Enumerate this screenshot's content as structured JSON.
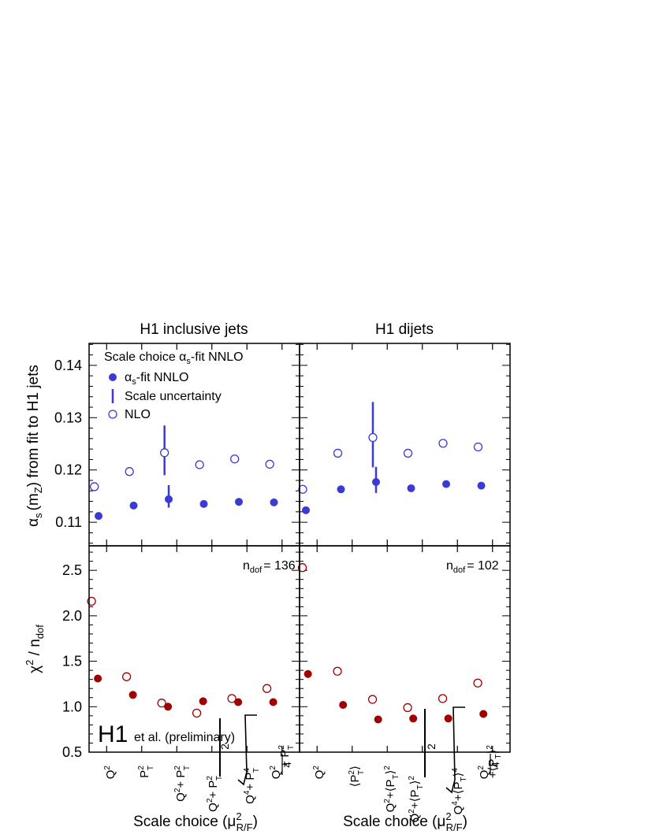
{
  "colors": {
    "blue": "#3a3ad6",
    "red": "#a00000",
    "frame": "#000000"
  },
  "titles": {
    "left": "H1 inclusive jets",
    "right": "H1 dijets"
  },
  "ylabels": {
    "top": {
      "alpha": "α",
      "s": "s",
      "m": "(m",
      "z": "Z",
      "rest": ") from fit to H1 jets"
    },
    "bottom": {
      "chi": "χ",
      "sq": "2",
      "mid": " / n",
      "dof": "dof"
    }
  },
  "xlabels": {
    "main": "Scale choice (μ",
    "sup": "2",
    "sub": "R/F",
    "close": ")"
  },
  "legend": {
    "header": {
      "pre": "Scale choice α",
      "sub": "s",
      "post": "-fit NNLO"
    },
    "nnlo": {
      "pre": "α",
      "sub": "s",
      "post": "-fit NNLO"
    },
    "unc": "Scale uncertainty",
    "nlo": "NLO"
  },
  "ndof": {
    "left": {
      "n": "n",
      "sub": "dof",
      "eq": "= 136"
    },
    "right": {
      "n": "n",
      "sub": "dof",
      "eq": "= 102"
    }
  },
  "logo": {
    "h1": "H1",
    "text": "et al. (preliminary)"
  },
  "ticks": {
    "alpha": [
      "0.11",
      "0.12",
      "0.13",
      "0.14"
    ],
    "chi": [
      "0.5",
      "1.0",
      "1.5",
      "2.0",
      "2.5"
    ]
  },
  "category_labels": {
    "left": [
      "Q²",
      "P²T",
      "Q² + P²T",
      "(Q² + P²T)/2",
      "√(Q⁴ + P⁴T)",
      "Q²/4 + P²T"
    ],
    "right": [
      "Q²",
      "⟨PT⟩²",
      "Q² + ⟨PT⟩²",
      "(Q² + ⟨PT⟩²)/2",
      "√(Q⁴ + ⟨PT⟩⁴)",
      "Q²/4 + ⟨PT⟩²"
    ]
  },
  "chart_data": [
    {
      "panel": "H1 inclusive jets",
      "type": "scatter",
      "quantity": "alpha_s(mZ)",
      "ylim": [
        0.1055,
        0.1442
      ],
      "nnlo": [
        0.1112,
        0.1132,
        0.1144,
        0.1135,
        0.1139,
        0.1138
      ],
      "nnlo_unc": [
        null,
        null,
        [
          0.1128,
          0.1171
        ],
        null,
        null,
        null
      ],
      "nlo": [
        0.1168,
        0.1197,
        0.1233,
        0.121,
        0.1221,
        0.1211
      ],
      "nlo_unc": [
        null,
        null,
        [
          0.119,
          0.1285
        ],
        null,
        null,
        null
      ]
    },
    {
      "panel": "H1 dijets",
      "type": "scatter",
      "quantity": "alpha_s(mZ)",
      "ylim": [
        0.1055,
        0.1442
      ],
      "nnlo": [
        0.1123,
        0.1163,
        0.1177,
        0.1165,
        0.1173,
        0.117
      ],
      "nnlo_unc": [
        null,
        null,
        [
          0.1156,
          0.1206
        ],
        null,
        null,
        null
      ],
      "nlo": [
        0.1163,
        0.1232,
        0.1262,
        0.1232,
        0.1251,
        0.1244
      ],
      "nlo_unc": [
        null,
        null,
        [
          0.1205,
          0.133
        ],
        null,
        null,
        null
      ]
    },
    {
      "panel": "H1 inclusive jets",
      "type": "scatter",
      "quantity": "chi2/ndof",
      "ylim": [
        0.5,
        2.77
      ],
      "nnlo": [
        1.31,
        1.13,
        1.0,
        1.06,
        1.05,
        1.05
      ],
      "nlo": [
        2.16,
        1.33,
        1.04,
        0.93,
        1.09,
        1.2
      ]
    },
    {
      "panel": "H1 dijets",
      "type": "scatter",
      "quantity": "chi2/ndof",
      "ylim": [
        0.5,
        2.77
      ],
      "nnlo": [
        1.36,
        1.02,
        0.86,
        0.87,
        0.87,
        0.92
      ],
      "nlo": [
        2.53,
        1.39,
        1.08,
        0.99,
        1.09,
        1.26
      ]
    }
  ]
}
